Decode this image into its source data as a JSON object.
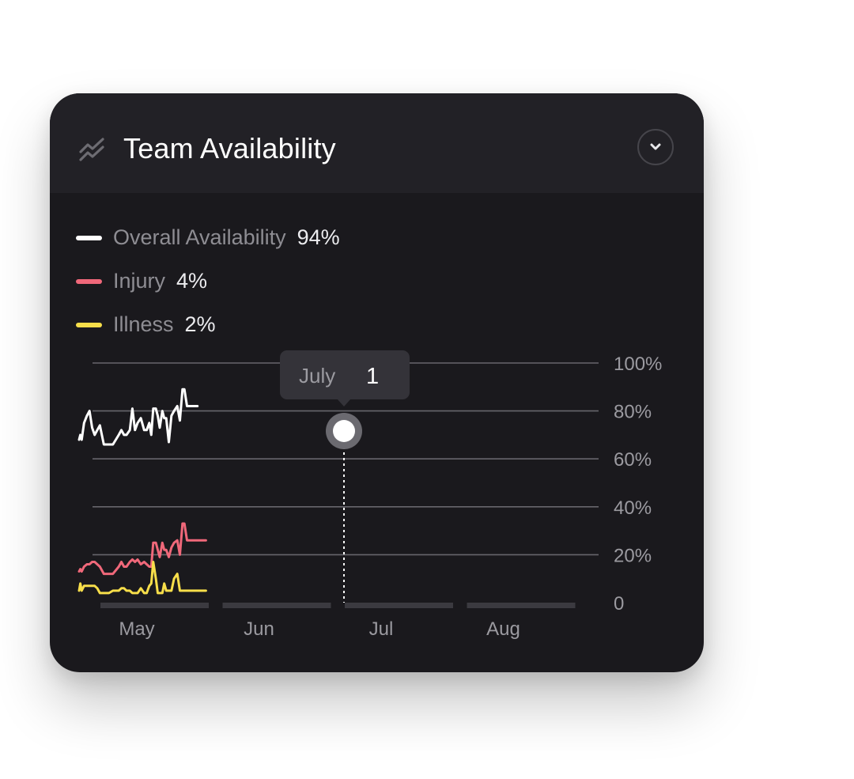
{
  "card": {
    "title": "Team Availability",
    "title_icon": "trend-lines-icon",
    "collapse_icon": "chevron-down-icon"
  },
  "legend": [
    {
      "label": "Overall Availability",
      "value": "94%",
      "color": "#ffffff"
    },
    {
      "label": "Injury",
      "value": "4%",
      "color": "#f0687a"
    },
    {
      "label": "Illness",
      "value": "2%",
      "color": "#f7de4a"
    }
  ],
  "tooltip": {
    "label": "July",
    "value": "1"
  },
  "chart_data": {
    "type": "line",
    "y_ticks": [
      "100%",
      "80%",
      "60%",
      "40%",
      "20%",
      "0"
    ],
    "ylim": [
      0,
      100
    ],
    "grid": true,
    "month_labels": [
      "May",
      "Jun",
      "Jul",
      "Aug"
    ],
    "x_months": [
      0.0,
      0.1,
      0.2,
      0.38,
      0.6,
      0.8,
      1.0,
      1.2,
      1.4,
      1.6,
      1.9,
      2.1,
      2.3,
      2.6,
      3.05,
      3.25,
      3.45,
      3.65,
      3.9,
      4.1,
      4.3,
      4.5,
      4.75,
      5.0,
      5.2,
      5.4,
      5.55,
      5.7,
      5.9,
      6.05,
      6.2,
      6.4,
      6.55,
      6.7,
      6.9,
      7.1,
      7.3,
      7.55,
      7.75,
      7.95,
      8.1,
      8.3,
      8.5,
      8.75,
      8.95,
      9.1,
      9.3,
      9.5,
      9.75,
      9.85
    ],
    "series": [
      {
        "name": "Overall Availability",
        "color": "#ffffff",
        "values": [
          68,
          70,
          68,
          75,
          78,
          80,
          73,
          70,
          72,
          74,
          66,
          66,
          66,
          66,
          70,
          72,
          70,
          70,
          72,
          81,
          72,
          75,
          77,
          72,
          72,
          75,
          70,
          81,
          81,
          78,
          73,
          80,
          77,
          77,
          67,
          78,
          80,
          82,
          76,
          89,
          89,
          82,
          82,
          82,
          82,
          82,
          82,
          82,
          82,
          82
        ]
      },
      {
        "name": "Injury",
        "color": "#f0687a",
        "values": [
          13,
          14,
          13,
          15,
          16,
          16,
          17,
          17,
          16,
          15,
          12,
          12,
          12,
          12,
          15,
          17,
          15,
          15,
          17,
          18,
          17,
          18,
          16,
          17,
          16,
          15,
          15,
          25,
          25,
          22,
          19,
          25,
          22,
          22,
          19,
          23,
          25,
          26,
          20,
          33,
          33,
          26,
          26,
          26,
          26,
          26,
          26,
          26,
          26,
          26
        ]
      },
      {
        "name": "Illness",
        "color": "#f7de4a",
        "values": [
          5,
          8,
          5,
          7,
          7,
          7,
          7,
          7,
          6,
          4,
          4,
          4,
          4,
          5,
          5,
          6,
          6,
          5,
          5,
          4,
          4,
          4,
          6,
          4,
          4,
          7,
          8,
          17,
          10,
          4,
          4,
          4,
          8,
          5,
          5,
          5,
          10,
          12,
          5,
          5,
          5,
          5,
          5,
          5,
          5,
          5,
          5,
          5,
          5,
          5
        ]
      }
    ]
  }
}
